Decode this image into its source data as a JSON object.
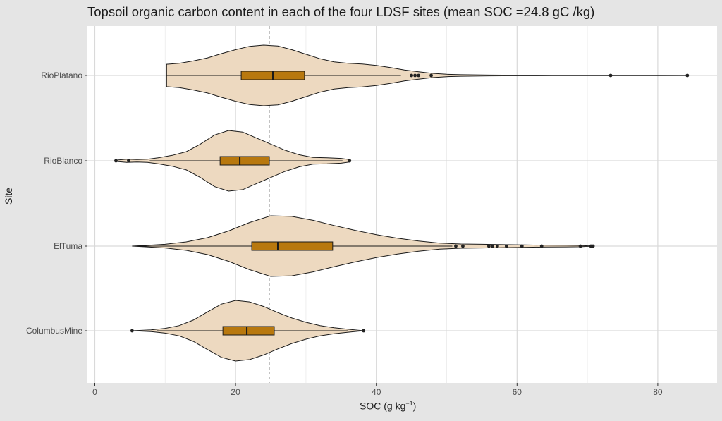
{
  "chart_data": {
    "type": "violin",
    "title": "Topsoil organic carbon content in each of the four LDSF sites (mean SOC =24.8 gC /kg)",
    "xlabel": "SOC (g kg−1)",
    "xlabel_main": "SOC (g kg",
    "xlabel_sup": "−1",
    "xlabel_close": ")",
    "ylabel": "Site",
    "xlim": [
      -1.2,
      88.2
    ],
    "x_ticks": [
      0,
      20,
      40,
      60,
      80
    ],
    "x_tick_labels": [
      "0",
      "20",
      "40",
      "60",
      "80"
    ],
    "grid": true,
    "reference_line": {
      "value": 24.8,
      "style": "dashed"
    },
    "colors": {
      "violin_fill": "#edd9c0",
      "box_fill": "#b8780e",
      "outline": "#1a1a1a",
      "panel": "#ffffff",
      "grid": "#d9d9d9",
      "background": "#e5e5e5"
    },
    "sites": [
      {
        "name": "RioPlatano",
        "box": {
          "q1": 20.8,
          "median": 25.3,
          "q3": 29.8,
          "whisker_low": 10.2,
          "whisker_high": 43.5
        },
        "outliers": [
          45.0,
          45.5,
          46.0,
          47.8,
          73.3,
          84.2
        ],
        "density": [
          [
            10.2,
            0.37
          ],
          [
            12,
            0.4
          ],
          [
            14,
            0.48
          ],
          [
            16,
            0.58
          ],
          [
            18,
            0.72
          ],
          [
            20,
            0.85
          ],
          [
            22,
            0.96
          ],
          [
            24,
            1.0
          ],
          [
            26,
            0.97
          ],
          [
            28,
            0.85
          ],
          [
            30,
            0.7
          ],
          [
            32,
            0.55
          ],
          [
            34,
            0.45
          ],
          [
            36,
            0.4
          ],
          [
            38,
            0.38
          ],
          [
            40,
            0.33
          ],
          [
            42,
            0.26
          ],
          [
            44,
            0.18
          ],
          [
            46,
            0.12
          ],
          [
            48,
            0.07
          ],
          [
            50,
            0.04
          ],
          [
            52,
            0.025
          ],
          [
            56,
            0.015
          ],
          [
            60,
            0.01
          ],
          [
            65,
            0.007
          ],
          [
            70,
            0.006
          ],
          [
            73.3,
            0.008
          ],
          [
            76,
            0.006
          ],
          [
            80,
            0.004
          ],
          [
            84.2,
            0.002
          ]
        ]
      },
      {
        "name": "RioBlanco",
        "box": {
          "q1": 17.8,
          "median": 20.6,
          "q3": 24.8,
          "whisker_low": 7.8,
          "whisker_high": 35.2
        },
        "outliers": [
          3.0,
          4.8,
          36.2
        ],
        "density": [
          [
            3.0,
            0.02
          ],
          [
            4.5,
            0.05
          ],
          [
            6,
            0.04
          ],
          [
            7.5,
            0.05
          ],
          [
            9,
            0.1
          ],
          [
            11,
            0.18
          ],
          [
            13,
            0.3
          ],
          [
            15,
            0.55
          ],
          [
            17,
            0.85
          ],
          [
            19,
            1.0
          ],
          [
            21,
            0.95
          ],
          [
            23,
            0.75
          ],
          [
            25,
            0.55
          ],
          [
            27,
            0.35
          ],
          [
            29,
            0.2
          ],
          [
            31,
            0.11
          ],
          [
            33,
            0.1
          ],
          [
            35,
            0.08
          ],
          [
            36.2,
            0.04
          ]
        ]
      },
      {
        "name": "ElTuma",
        "box": {
          "q1": 22.3,
          "median": 26.0,
          "q3": 33.8,
          "whisker_low": 5.3,
          "whisker_high": 50.8
        },
        "outliers": [
          51.3,
          52.3,
          56.0,
          56.5,
          57.2,
          58.5,
          60.7,
          63.5,
          69.0,
          70.5,
          70.8
        ],
        "density": [
          [
            5.3,
            0.0
          ],
          [
            7,
            0.02
          ],
          [
            10,
            0.06
          ],
          [
            13,
            0.14
          ],
          [
            16,
            0.28
          ],
          [
            19,
            0.5
          ],
          [
            22,
            0.78
          ],
          [
            25,
            1.0
          ],
          [
            28,
            0.98
          ],
          [
            31,
            0.85
          ],
          [
            34,
            0.68
          ],
          [
            37,
            0.52
          ],
          [
            40,
            0.38
          ],
          [
            43,
            0.26
          ],
          [
            46,
            0.17
          ],
          [
            49,
            0.1
          ],
          [
            52,
            0.07
          ],
          [
            55,
            0.06
          ],
          [
            58,
            0.05
          ],
          [
            61,
            0.04
          ],
          [
            64,
            0.03
          ],
          [
            67,
            0.025
          ],
          [
            69,
            0.02
          ],
          [
            70.8,
            0.0
          ]
        ]
      },
      {
        "name": "ColumbusMine",
        "box": {
          "q1": 18.2,
          "median": 21.6,
          "q3": 25.5,
          "whisker_low": 8.8,
          "whisker_high": 36.0
        },
        "outliers": [
          5.3,
          38.2
        ],
        "density": [
          [
            5.3,
            0.0
          ],
          [
            8,
            0.03
          ],
          [
            10,
            0.08
          ],
          [
            12,
            0.17
          ],
          [
            14,
            0.35
          ],
          [
            16,
            0.62
          ],
          [
            18,
            0.88
          ],
          [
            20,
            1.0
          ],
          [
            22,
            0.95
          ],
          [
            24,
            0.8
          ],
          [
            26,
            0.6
          ],
          [
            28,
            0.42
          ],
          [
            30,
            0.28
          ],
          [
            32,
            0.17
          ],
          [
            34,
            0.1
          ],
          [
            36,
            0.05
          ],
          [
            38.2,
            0.0
          ]
        ]
      }
    ]
  }
}
